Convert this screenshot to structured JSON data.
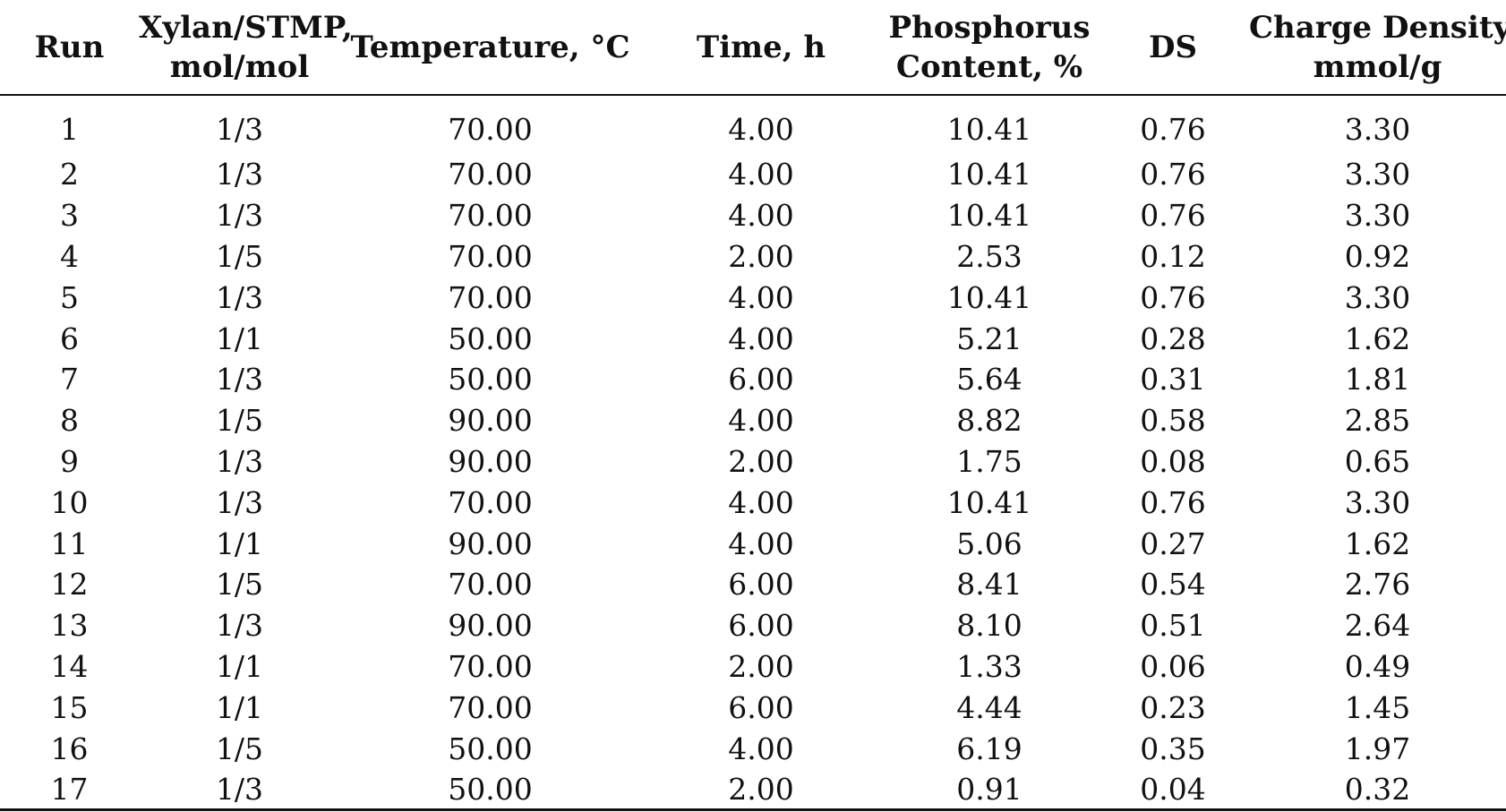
{
  "headers": {
    "run": [
      "Run"
    ],
    "ratio": [
      "Xylan/STMP,",
      "mol/mol"
    ],
    "temperature": [
      "Temperature, °C"
    ],
    "time": [
      "Time, h"
    ],
    "phosphorus": [
      "Phosphorus",
      "Content, %"
    ],
    "ds": [
      "DS"
    ],
    "charge": [
      "Charge Density,",
      "mmol/g"
    ]
  },
  "rows": [
    [
      "1",
      "1/3",
      "70.00",
      "4.00",
      "10.41",
      "0.76",
      "3.30"
    ],
    [
      "2",
      "1/3",
      "70.00",
      "4.00",
      "10.41",
      "0.76",
      "3.30"
    ],
    [
      "3",
      "1/3",
      "70.00",
      "4.00",
      "10.41",
      "0.76",
      "3.30"
    ],
    [
      "4",
      "1/5",
      "70.00",
      "2.00",
      "2.53",
      "0.12",
      "0.92"
    ],
    [
      "5",
      "1/3",
      "70.00",
      "4.00",
      "10.41",
      "0.76",
      "3.30"
    ],
    [
      "6",
      "1/1",
      "50.00",
      "4.00",
      "5.21",
      "0.28",
      "1.62"
    ],
    [
      "7",
      "1/3",
      "50.00",
      "6.00",
      "5.64",
      "0.31",
      "1.81"
    ],
    [
      "8",
      "1/5",
      "90.00",
      "4.00",
      "8.82",
      "0.58",
      "2.85"
    ],
    [
      "9",
      "1/3",
      "90.00",
      "2.00",
      "1.75",
      "0.08",
      "0.65"
    ],
    [
      "10",
      "1/3",
      "70.00",
      "4.00",
      "10.41",
      "0.76",
      "3.30"
    ],
    [
      "11",
      "1/1",
      "90.00",
      "4.00",
      "5.06",
      "0.27",
      "1.62"
    ],
    [
      "12",
      "1/5",
      "70.00",
      "6.00",
      "8.41",
      "0.54",
      "2.76"
    ],
    [
      "13",
      "1/3",
      "90.00",
      "6.00",
      "8.10",
      "0.51",
      "2.64"
    ],
    [
      "14",
      "1/1",
      "70.00",
      "2.00",
      "1.33",
      "0.06",
      "0.49"
    ],
    [
      "15",
      "1/1",
      "70.00",
      "6.00",
      "4.44",
      "0.23",
      "1.45"
    ],
    [
      "16",
      "1/5",
      "50.00",
      "4.00",
      "6.19",
      "0.35",
      "1.97"
    ],
    [
      "17",
      "1/3",
      "50.00",
      "2.00",
      "0.91",
      "0.04",
      "0.32"
    ]
  ]
}
